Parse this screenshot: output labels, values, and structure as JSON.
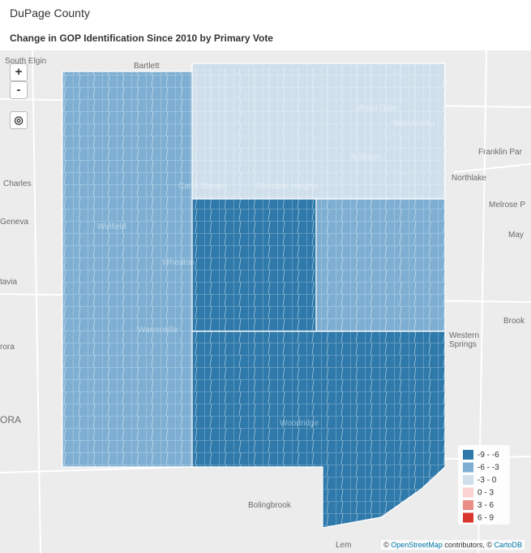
{
  "header": {
    "title": "DuPage County",
    "subtitle": "Change in GOP Identification Since 2010 by Primary Vote"
  },
  "controls": {
    "zoom_in": "+",
    "zoom_out": "-"
  },
  "map": {
    "labels": [
      "South Elgin",
      "Bartlett",
      "Wood Dale",
      "Bensenville",
      "Franklin Par",
      "Addison",
      "Northlake",
      "Charles",
      "Carol Stream",
      "Glendale Heights",
      "Melrose P",
      "Geneva",
      "Winfield",
      "May",
      "Wheaton",
      "tavia",
      "Brook",
      "Warrenville",
      "Western",
      "Springs",
      "rora",
      "ORA",
      "Woodridge",
      "Bolingbrook",
      "Lem"
    ]
  },
  "legend": {
    "items": [
      {
        "label": "-9 - -6",
        "color": "#2f7aab"
      },
      {
        "label": "-6 - -3",
        "color": "#7eafd2"
      },
      {
        "label": "-3 - 0",
        "color": "#cfe0ec"
      },
      {
        "label": "0 - 3",
        "color": "#f9d3d0"
      },
      {
        "label": "3 - 6",
        "color": "#ea8d85"
      },
      {
        "label": "6 - 9",
        "color": "#d9372e"
      }
    ]
  },
  "attribution": {
    "prefix": "©",
    "osm": "OpenStreetMap",
    "middle": "contributors, ©",
    "carto": "CartoDB"
  }
}
